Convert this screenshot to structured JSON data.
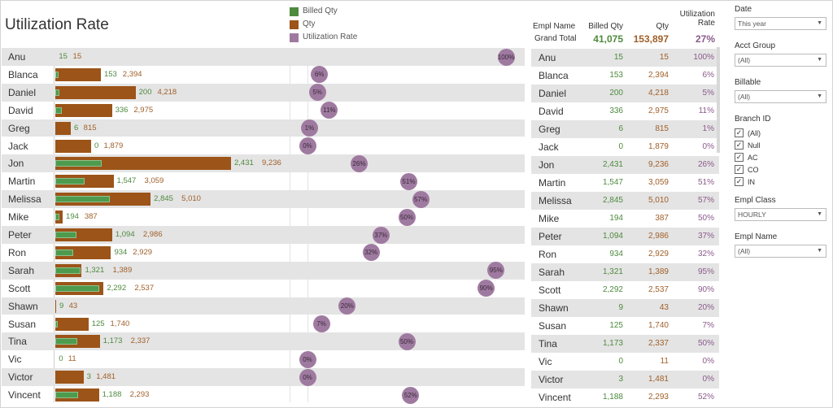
{
  "title": "Utilization Rate",
  "legend": [
    {
      "label": "Billed Qty",
      "color": "#4e8a3e"
    },
    {
      "label": "Qty",
      "color": "#9c5418"
    },
    {
      "label": "Utilization Rate",
      "color": "#9f7aa0"
    }
  ],
  "table_headers": {
    "name": "Empl Name",
    "billed": "Billed Qty",
    "qty": "Qty",
    "ur_line1": "Utilization",
    "ur_line2": "Rate"
  },
  "grand_total": {
    "label": "Grand Total",
    "billed": "41,075",
    "qty": "153,897",
    "ur": "27%"
  },
  "colors": {
    "billed": "#4e8a3e",
    "qty": "#9c5418",
    "rate": "#9f7aa0"
  },
  "filters": {
    "date": {
      "label": "Date",
      "value": "This year"
    },
    "acct_group": {
      "label": "Acct Group",
      "value": "(All)"
    },
    "billable": {
      "label": "Billable",
      "value": "(All)"
    },
    "branch": {
      "label": "Branch ID",
      "options": [
        "(All)",
        "Null",
        "AC",
        "CO",
        "IN"
      ]
    },
    "empl_class": {
      "label": "Empl Class",
      "value": "HOURLY"
    },
    "empl_name": {
      "label": "Empl Name",
      "value": "(All)"
    }
  },
  "chart_data": {
    "type": "bar",
    "title": "Utilization Rate",
    "categories": [
      "Anu",
      "Blanca",
      "Daniel",
      "David",
      "Greg",
      "Jack",
      "Jon",
      "Martin",
      "Melissa",
      "Mike",
      "Peter",
      "Ron",
      "Sarah",
      "Scott",
      "Shawn",
      "Susan",
      "Tina",
      "Vic",
      "Victor",
      "Vincent"
    ],
    "series": [
      {
        "name": "Billed Qty",
        "values": [
          15,
          153,
          200,
          336,
          6,
          0,
          2431,
          1547,
          2845,
          194,
          1094,
          934,
          1321,
          2292,
          9,
          125,
          1173,
          0,
          3,
          1188
        ]
      },
      {
        "name": "Qty",
        "values": [
          15,
          2394,
          4218,
          2975,
          815,
          1879,
          9236,
          3059,
          5010,
          387,
          2986,
          2929,
          1389,
          2537,
          43,
          1740,
          2337,
          11,
          1481,
          2293
        ]
      },
      {
        "name": "Utilization Rate",
        "values": [
          100,
          6,
          5,
          11,
          1,
          0,
          26,
          51,
          57,
          50,
          37,
          32,
          95,
          90,
          20,
          7,
          50,
          0,
          0,
          52
        ]
      }
    ],
    "labels": {
      "billed": [
        "15",
        "153",
        "200",
        "336",
        "6",
        "0",
        "2,431",
        "1,547",
        "2,845",
        "194",
        "1,094",
        "934",
        "1,321",
        "2,292",
        "9",
        "125",
        "1,173",
        "0",
        "3",
        "1,188"
      ],
      "qty": [
        "15",
        "2,394",
        "4,218",
        "2,975",
        "815",
        "1,879",
        "9,236",
        "3,059",
        "5,010",
        "387",
        "2,986",
        "2,929",
        "1,389",
        "2,537",
        "43",
        "1,740",
        "2,337",
        "11",
        "1,481",
        "2,293"
      ],
      "rate": [
        "100%",
        "6%",
        "5%",
        "11%",
        "1%",
        "0%",
        "26%",
        "51%",
        "57%",
        "50%",
        "37%",
        "32%",
        "95%",
        "90%",
        "20%",
        "7%",
        "50%",
        "0%",
        "0%",
        "52%"
      ]
    }
  }
}
